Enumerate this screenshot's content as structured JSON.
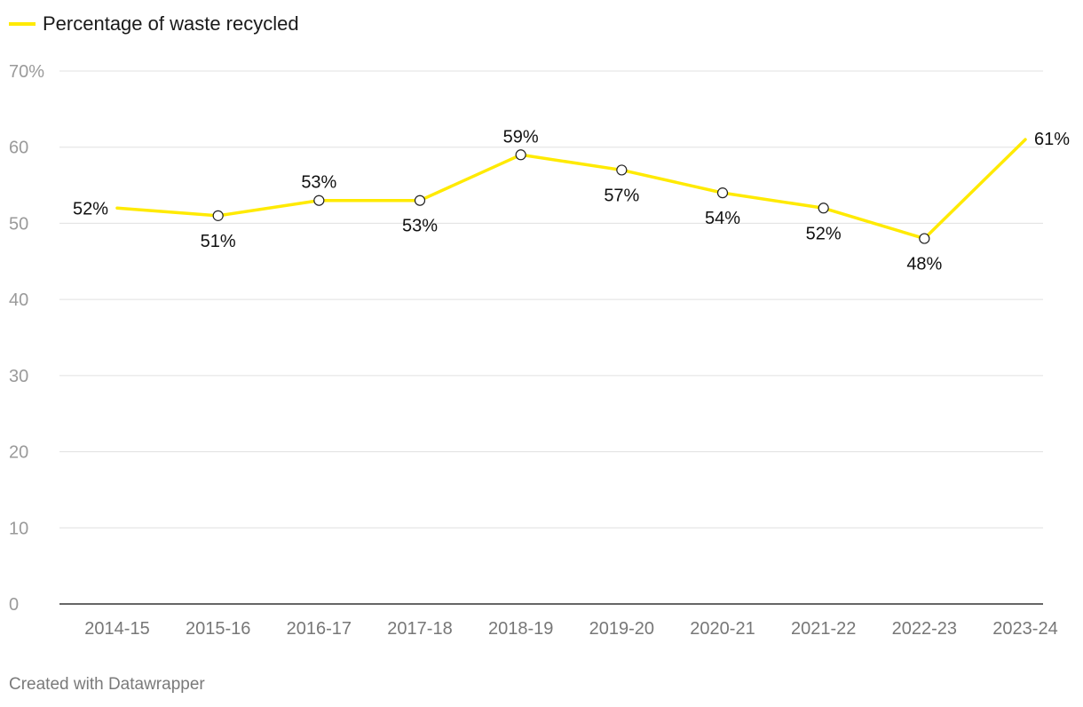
{
  "chart_data": {
    "type": "line",
    "title": "",
    "xlabel": "",
    "ylabel": "",
    "categories": [
      "2014-15",
      "2015-16",
      "2016-17",
      "2017-18",
      "2018-19",
      "2019-20",
      "2020-21",
      "2021-22",
      "2022-23",
      "2023-24"
    ],
    "series": [
      {
        "name": "Percentage of waste recycled",
        "values": [
          52,
          51,
          53,
          53,
          59,
          57,
          54,
          52,
          48,
          61
        ],
        "labels": [
          "52%",
          "51%",
          "53%",
          "53%",
          "59%",
          "57%",
          "54%",
          "52%",
          "48%",
          "61%"
        ],
        "color": "#ffea00"
      }
    ],
    "ylim": [
      0,
      70
    ],
    "yticks": [
      0,
      10,
      20,
      30,
      40,
      50,
      60,
      70
    ],
    "ytick_labels": [
      "0",
      "10",
      "20",
      "30",
      "40",
      "50",
      "60",
      "70%"
    ],
    "grid": true,
    "legend": "top-left"
  },
  "footer": {
    "credit": "Created with Datawrapper"
  },
  "colors": {
    "line": "#ffea00",
    "grid": "#e0e0e0",
    "axis": "#333333"
  }
}
